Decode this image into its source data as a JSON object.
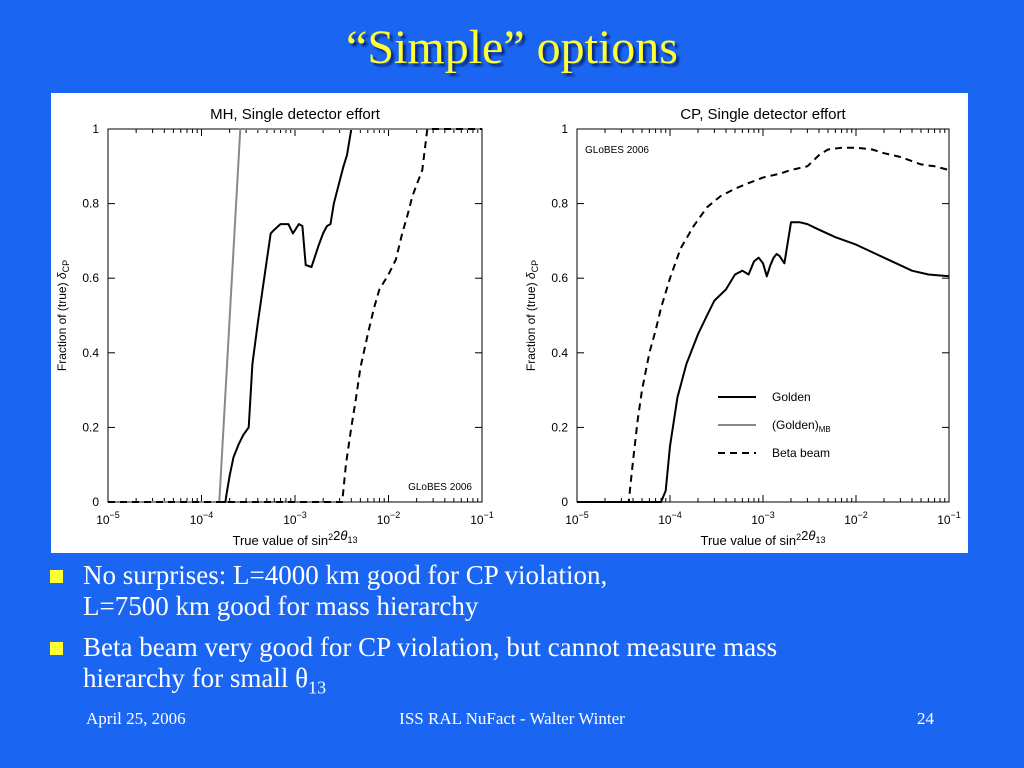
{
  "slide": {
    "title": "“Simple” options",
    "bullets": [
      {
        "line1": "No surprises: L=4000 km good for CP violation,",
        "line2": "L=7500 km good for mass hierarchy"
      },
      {
        "line1": "Beta beam very good for CP violation, but cannot measure mass",
        "line2_prefix": "hierarchy for small ",
        "theta": "θ",
        "theta_sub": "13"
      }
    ],
    "footer": {
      "date": "April 25, 2006",
      "center": "ISS RAL NuFact - Walter Winter",
      "page": "24"
    },
    "colors": {
      "background": "#1a66f2",
      "title": "#ffff33",
      "text": "#ffffff",
      "bullet": "#ffff33"
    }
  },
  "chart_data": [
    {
      "type": "line",
      "title": "MH, Single detector effort",
      "xlabel": "True value of sin²2θ₁₃",
      "ylabel": "Fraction of (true) δ_CP",
      "x_scale": "log",
      "xlim": [
        1e-05,
        0.1
      ],
      "ylim": [
        0,
        1
      ],
      "x_ticks": [
        1e-05,
        0.0001,
        0.001,
        0.01,
        0.1
      ],
      "x_tick_labels": [
        {
          "base": "10",
          "exp": "−5"
        },
        {
          "base": "10",
          "exp": "−4"
        },
        {
          "base": "10",
          "exp": "−3"
        },
        {
          "base": "10",
          "exp": "−2"
        },
        {
          "base": "10",
          "exp": "−1"
        }
      ],
      "y_ticks": [
        0,
        0.2,
        0.4,
        0.6,
        0.8,
        1
      ],
      "y_tick_labels": [
        "0",
        "0.2",
        "0.4",
        "0.6",
        "0.8",
        "1"
      ],
      "annotation": "GLoBES 2006",
      "annotation_position": "bottom-right",
      "legend": null,
      "series": [
        {
          "name": "Golden",
          "style": "solid",
          "color": "#000000",
          "x": [
            1e-05,
            0.00018,
            0.000185,
            0.0002,
            0.00022,
            0.00025,
            0.00028,
            0.00032,
            0.00035,
            0.0004,
            0.00045,
            0.0005,
            0.00055,
            0.0006,
            0.0007,
            0.00085,
            0.00095,
            0.0011,
            0.0012,
            0.0013,
            0.0015,
            0.0018,
            0.002,
            0.0022,
            0.0024,
            0.0026,
            0.003,
            0.0033,
            0.0036,
            0.004,
            0.1
          ],
          "y": [
            0,
            0,
            0.02,
            0.07,
            0.12,
            0.155,
            0.18,
            0.2,
            0.37,
            0.48,
            0.57,
            0.65,
            0.72,
            0.73,
            0.745,
            0.745,
            0.72,
            0.745,
            0.74,
            0.635,
            0.63,
            0.69,
            0.72,
            0.74,
            0.745,
            0.8,
            0.86,
            0.9,
            0.93,
            1,
            1
          ]
        },
        {
          "name": "(Golden)_MB",
          "style": "solid",
          "color": "#888888",
          "x": [
            1e-05,
            0.000155,
            0.00026,
            0.1
          ],
          "y": [
            0,
            0,
            1,
            1
          ]
        },
        {
          "name": "Beta beam",
          "style": "dashed",
          "color": "#000000",
          "x": [
            1e-05,
            0.0032,
            0.0035,
            0.004,
            0.0045,
            0.005,
            0.006,
            0.007,
            0.008,
            0.01,
            0.012,
            0.014,
            0.016,
            0.018,
            0.02,
            0.023,
            0.026,
            0.03,
            0.1
          ],
          "y": [
            0,
            0,
            0.1,
            0.2,
            0.28,
            0.36,
            0.45,
            0.52,
            0.57,
            0.61,
            0.65,
            0.72,
            0.77,
            0.82,
            0.85,
            0.89,
            1,
            1,
            1
          ]
        }
      ]
    },
    {
      "type": "line",
      "title": "CP, Single detector effort",
      "xlabel": "True value of sin²2θ₁₃",
      "ylabel": "Fraction of (true) δ_CP",
      "x_scale": "log",
      "xlim": [
        1e-05,
        0.1
      ],
      "ylim": [
        0,
        1
      ],
      "x_ticks": [
        1e-05,
        0.0001,
        0.001,
        0.01,
        0.1
      ],
      "x_tick_labels": [
        {
          "base": "10",
          "exp": "−5"
        },
        {
          "base": "10",
          "exp": "−4"
        },
        {
          "base": "10",
          "exp": "−3"
        },
        {
          "base": "10",
          "exp": "−2"
        },
        {
          "base": "10",
          "exp": "−1"
        }
      ],
      "y_ticks": [
        0,
        0.2,
        0.4,
        0.6,
        0.8,
        1
      ],
      "y_tick_labels": [
        "0",
        "0.2",
        "0.4",
        "0.6",
        "0.8",
        "1"
      ],
      "annotation": "GLoBES 2006",
      "annotation_position": "top-left",
      "legend_position": "bottom-right",
      "legend": [
        {
          "label": "Golden",
          "style": "solid",
          "color": "#000000"
        },
        {
          "label": "(Golden)",
          "sub": "MB",
          "style": "solid",
          "color": "#888888"
        },
        {
          "label": "Beta beam",
          "style": "dashed",
          "color": "#000000"
        }
      ],
      "series": [
        {
          "name": "Golden",
          "style": "solid",
          "color": "#000000",
          "x": [
            1e-05,
            8e-05,
            9e-05,
            0.0001,
            0.00012,
            0.00015,
            0.0002,
            0.00025,
            0.0003,
            0.0004,
            0.0005,
            0.0006,
            0.0007,
            0.0008,
            0.0009,
            0.001,
            0.0011,
            0.0012,
            0.0013,
            0.0014,
            0.0015,
            0.0017,
            0.002,
            0.0025,
            0.003,
            0.004,
            0.006,
            0.01,
            0.02,
            0.04,
            0.06,
            0.1
          ],
          "y": [
            0,
            0,
            0.03,
            0.15,
            0.28,
            0.37,
            0.45,
            0.5,
            0.54,
            0.57,
            0.61,
            0.62,
            0.61,
            0.645,
            0.655,
            0.64,
            0.605,
            0.635,
            0.655,
            0.665,
            0.66,
            0.64,
            0.75,
            0.75,
            0.745,
            0.73,
            0.71,
            0.69,
            0.655,
            0.62,
            0.61,
            0.605
          ]
        },
        {
          "name": "Beta beam",
          "style": "dashed",
          "color": "#000000",
          "x": [
            1e-05,
            3.6e-05,
            4e-05,
            4.5e-05,
            5e-05,
            6e-05,
            7e-05,
            8e-05,
            0.0001,
            0.00013,
            0.00018,
            0.00025,
            0.00035,
            0.0005,
            0.0007,
            0.001,
            0.0015,
            0.002,
            0.003,
            0.004,
            0.005,
            0.007,
            0.01,
            0.015,
            0.02,
            0.03,
            0.05,
            0.07,
            0.1
          ],
          "y": [
            0,
            0,
            0.11,
            0.22,
            0.3,
            0.4,
            0.46,
            0.52,
            0.6,
            0.68,
            0.74,
            0.79,
            0.82,
            0.84,
            0.855,
            0.87,
            0.88,
            0.89,
            0.9,
            0.93,
            0.945,
            0.95,
            0.95,
            0.945,
            0.935,
            0.925,
            0.905,
            0.9,
            0.89
          ]
        }
      ]
    }
  ]
}
